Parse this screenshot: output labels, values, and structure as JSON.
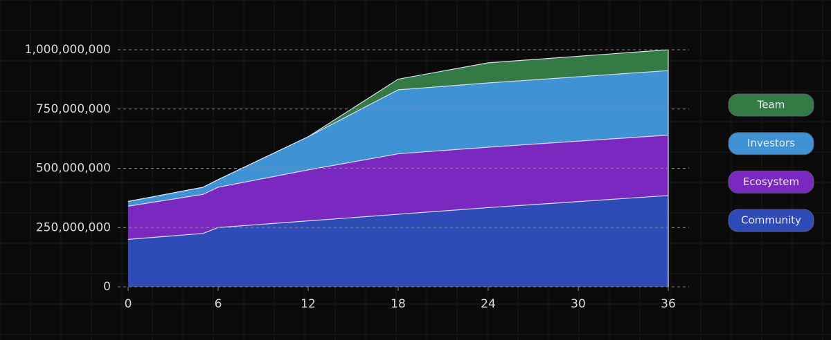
{
  "chart_data": {
    "type": "stacked-area",
    "x": [
      0,
      5,
      6,
      12,
      18,
      24,
      36
    ],
    "series": [
      {
        "name": "Community",
        "color": "#2f4bb8",
        "values": [
          200000000,
          225000000,
          250000000,
          278000000,
          306000000,
          334000000,
          385000000
        ]
      },
      {
        "name": "Ecosystem",
        "color": "#7b28c0",
        "values": [
          140000000,
          165000000,
          170000000,
          215000000,
          255000000,
          255000000,
          255000000
        ]
      },
      {
        "name": "Investors",
        "color": "#3f93d4",
        "values": [
          20000000,
          30000000,
          32000000,
          140000000,
          270000000,
          271000000,
          272000000
        ]
      },
      {
        "name": "Team",
        "color": "#347a45",
        "values": [
          0,
          0,
          0,
          0,
          45000000,
          85000000,
          88000000
        ]
      }
    ],
    "xlim": [
      0,
      36
    ],
    "xticks": [
      0,
      6,
      12,
      18,
      24,
      30,
      36
    ],
    "ylim": [
      0,
      1000000000
    ],
    "yticks": [
      0,
      {
        "value": 250000000,
        "label": "250,000,000"
      },
      {
        "value": 500000000,
        "label": "500,000,000"
      },
      {
        "value": 750000000,
        "label": "750,000,000"
      },
      {
        "value": 1000000000,
        "label": "1,000,000,000"
      }
    ],
    "grid": true,
    "legend": "right"
  }
}
